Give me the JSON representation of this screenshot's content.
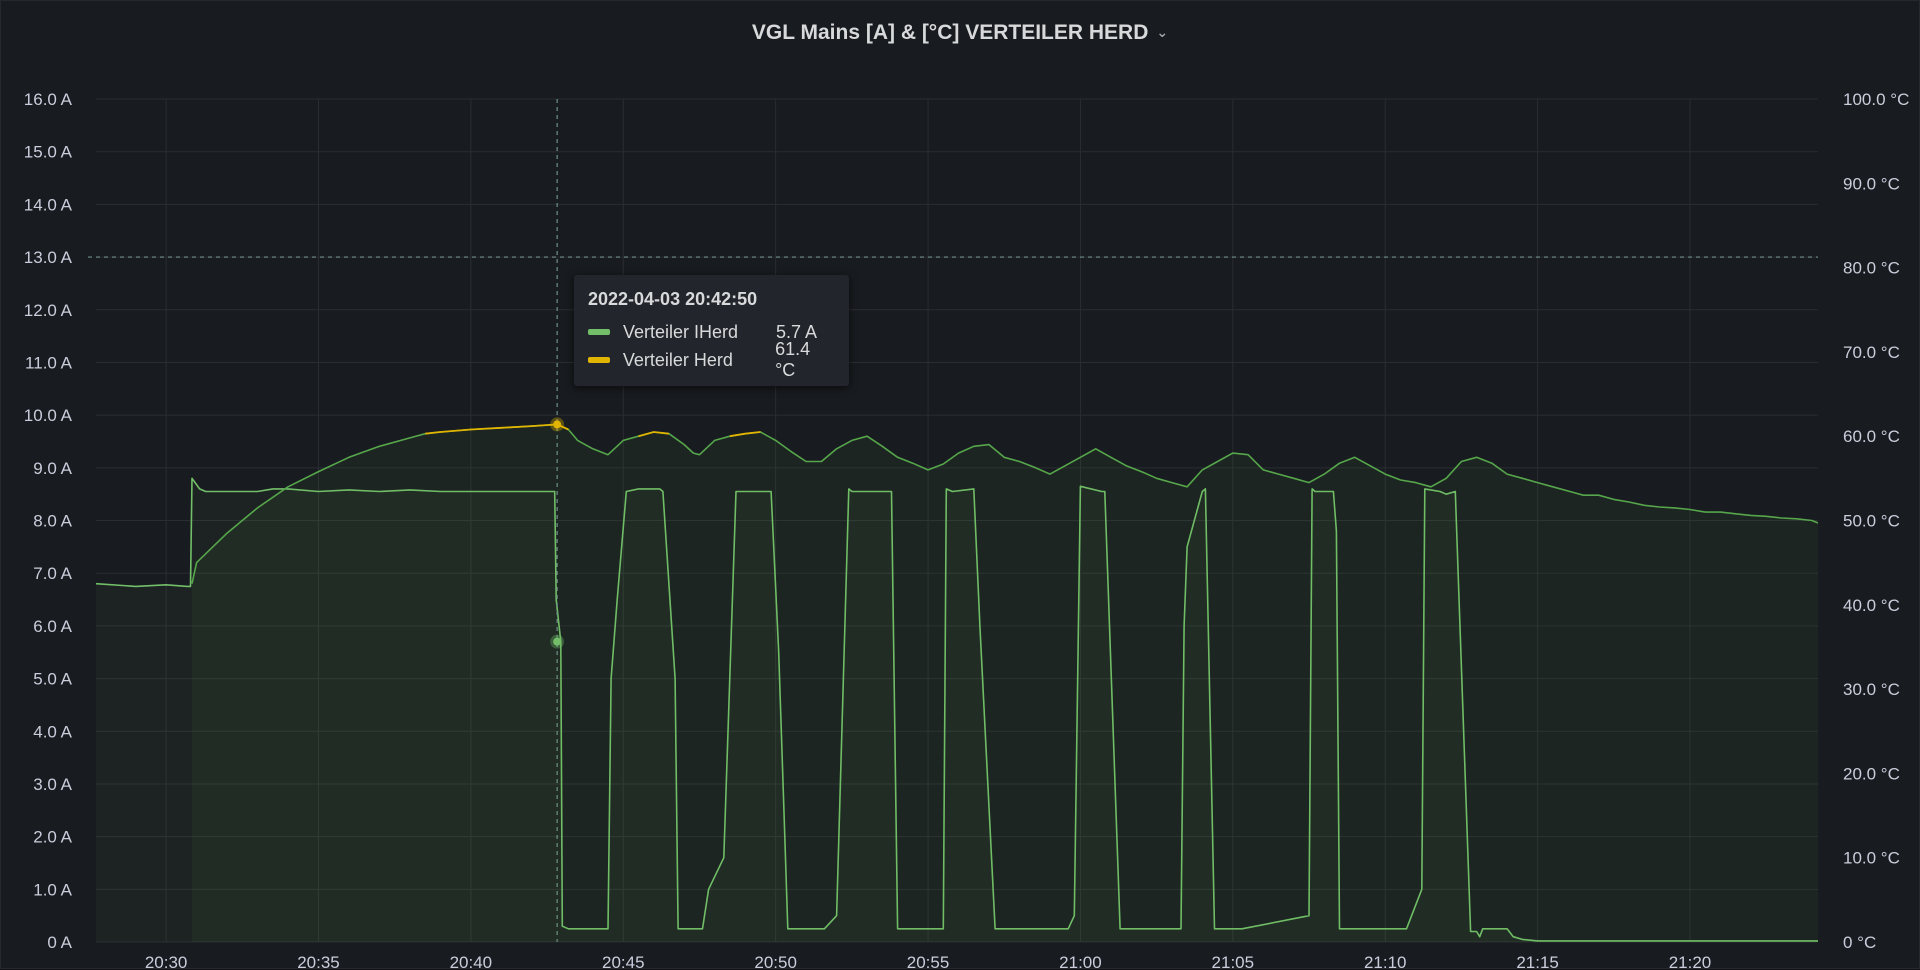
{
  "panel": {
    "title": "VGL Mains [A] & [°C] VERTEILER HERD"
  },
  "tooltip": {
    "time": "2022-04-03 20:42:50",
    "rows": [
      {
        "name": "Verteiler IHerd",
        "value": "5.7 A",
        "color": "#73bf69"
      },
      {
        "name": "Verteiler Herd",
        "value": "61.4 °C",
        "color": "#fade2a"
      }
    ]
  },
  "chart_data": {
    "type": "line",
    "title": "VGL Mains [A] & [°C] VERTEILER HERD",
    "x_ticks": [
      "20:30",
      "20:35",
      "20:40",
      "20:45",
      "20:50",
      "20:55",
      "21:00",
      "21:05",
      "21:10",
      "21:15",
      "21:20"
    ],
    "x_tick_minutes": [
      30,
      35,
      40,
      45,
      50,
      55,
      60,
      65,
      70,
      75,
      80
    ],
    "xlim_minutes": [
      27.7,
      84.2
    ],
    "y_left": {
      "ticks": [
        "0 A",
        "1.0 A",
        "2.0 A",
        "3.0 A",
        "4.0 A",
        "5.0 A",
        "6.0 A",
        "7.0 A",
        "8.0 A",
        "9.0 A",
        "10.0 A",
        "11.0 A",
        "12.0 A",
        "13.0 A",
        "14.0 A",
        "15.0 A",
        "16.0 A"
      ],
      "ylim": [
        0,
        16
      ],
      "unit": "A"
    },
    "y_right": {
      "ticks": [
        "0 °C",
        "10.0 °C",
        "20.0 °C",
        "30.0 °C",
        "40.0 °C",
        "50.0 °C",
        "60.0 °C",
        "70.0 °C",
        "80.0 °C",
        "90.0 °C",
        "100.0 °C"
      ],
      "ylim": [
        0,
        100
      ],
      "unit": "°C"
    },
    "threshold_A": 13,
    "cursor_minute": 42.83,
    "grid": true,
    "series": [
      {
        "name": "Verteiler IHerd",
        "axis": "left",
        "color": "#73bf69",
        "x": [
          27.7,
          29.0,
          30.0,
          30.7,
          30.8,
          30.85,
          31.1,
          31.3,
          32.0,
          33.0,
          33.5,
          34.0,
          35.0,
          36.0,
          37.0,
          38.0,
          39.0,
          40.0,
          41.0,
          42.0,
          42.7,
          42.75,
          42.8,
          42.95,
          43.0,
          43.2,
          43.3,
          44.0,
          44.5,
          44.6,
          44.8,
          45.1,
          45.5,
          46.2,
          46.3,
          46.7,
          46.8,
          47.1,
          47.6,
          47.8,
          48.3,
          48.7,
          48.8,
          49.7,
          49.85,
          50.1,
          50.3,
          50.4,
          51.0,
          51.6,
          52.0,
          52.4,
          52.5,
          53.0,
          53.7,
          53.8,
          54.0,
          54.2,
          55.5,
          55.6,
          55.8,
          56.5,
          56.7,
          57.2,
          57.4,
          58.0,
          59.6,
          59.8,
          60.0,
          60.7,
          60.8,
          61.3,
          61.4,
          62.0,
          63.3,
          63.4,
          63.5,
          64.0,
          64.1,
          64.4,
          64.6,
          65.0,
          65.1,
          65.3,
          67.5,
          67.6,
          67.7,
          68.3,
          68.4,
          68.5,
          69.2,
          70.2,
          70.7,
          71.2,
          71.3,
          71.8,
          72.0,
          72.3,
          72.8,
          73.0,
          73.1,
          73.2,
          73.4,
          74.0,
          74.2,
          74.5,
          75.0,
          84.2
        ],
        "values": [
          6.8,
          6.75,
          6.78,
          6.75,
          6.75,
          8.8,
          8.6,
          8.55,
          8.55,
          8.55,
          8.6,
          8.6,
          8.55,
          8.58,
          8.55,
          8.58,
          8.55,
          8.55,
          8.55,
          8.55,
          8.55,
          8.55,
          6.5,
          5.7,
          0.3,
          0.25,
          0.25,
          0.25,
          0.25,
          5.0,
          6.5,
          8.55,
          8.6,
          8.6,
          8.55,
          5.0,
          0.25,
          0.25,
          0.25,
          1.0,
          1.6,
          8.55,
          8.55,
          8.55,
          8.55,
          5.5,
          2.0,
          0.25,
          0.25,
          0.25,
          0.5,
          8.6,
          8.55,
          8.55,
          8.55,
          8.55,
          0.25,
          0.25,
          0.25,
          8.6,
          8.55,
          8.6,
          6.0,
          0.25,
          0.25,
          0.25,
          0.25,
          0.5,
          8.65,
          8.55,
          8.55,
          0.25,
          0.25,
          0.25,
          0.25,
          6.0,
          7.5,
          8.55,
          8.6,
          0.25,
          0.25,
          0.25,
          0.25,
          0.25,
          0.5,
          8.6,
          8.55,
          8.55,
          7.8,
          0.25,
          0.25,
          0.25,
          0.25,
          1.0,
          8.6,
          8.55,
          8.5,
          8.55,
          0.2,
          0.2,
          0.1,
          0.25,
          0.25,
          0.25,
          0.1,
          0.05,
          0.02,
          0.02
        ]
      },
      {
        "name": "Verteiler Herd",
        "axis": "right",
        "color": "#fade2a",
        "x": [
          30.85,
          31.0,
          32.0,
          33.0,
          34.0,
          35.0,
          36.0,
          37.0,
          38.0,
          38.5,
          39.0,
          40.0,
          41.0,
          42.0,
          42.83,
          43.2,
          43.5,
          44.0,
          44.5,
          45.0,
          45.5,
          46.0,
          46.5,
          47.0,
          47.3,
          47.5,
          48.0,
          48.5,
          49.0,
          49.5,
          50.0,
          50.5,
          51.0,
          51.5,
          52.0,
          52.5,
          53.0,
          53.5,
          54.0,
          54.5,
          55.0,
          55.5,
          56.0,
          56.5,
          57.0,
          57.5,
          58.0,
          58.5,
          59.0,
          59.5,
          60.0,
          60.5,
          61.0,
          61.5,
          62.0,
          62.5,
          63.0,
          63.5,
          64.0,
          64.5,
          65.0,
          65.5,
          66.0,
          66.5,
          67.0,
          67.5,
          68.0,
          68.5,
          69.0,
          69.5,
          70.0,
          70.5,
          71.0,
          71.5,
          72.0,
          72.5,
          73.0,
          73.5,
          74.0,
          74.5,
          75.0,
          75.5,
          76.0,
          76.5,
          77.0,
          77.5,
          78.0,
          78.5,
          79.0,
          79.5,
          80.0,
          80.5,
          81.0,
          81.5,
          82.0,
          82.5,
          83.0,
          83.5,
          84.0,
          84.2
        ],
        "values": [
          42.5,
          45.0,
          48.5,
          51.5,
          54.0,
          55.8,
          57.5,
          58.8,
          59.8,
          60.3,
          60.5,
          60.8,
          61.0,
          61.2,
          61.4,
          60.8,
          59.5,
          58.5,
          57.8,
          59.5,
          60.0,
          60.5,
          60.3,
          59.0,
          58.0,
          57.8,
          59.5,
          60.0,
          60.3,
          60.5,
          59.5,
          58.2,
          57.0,
          57.0,
          58.5,
          59.5,
          60.0,
          58.8,
          57.5,
          56.8,
          56.0,
          56.7,
          58.0,
          58.8,
          59.0,
          57.5,
          57.0,
          56.3,
          55.5,
          56.5,
          57.5,
          58.5,
          57.5,
          56.5,
          55.8,
          55.0,
          54.5,
          54.0,
          56.0,
          57.0,
          58.0,
          57.8,
          56.0,
          55.5,
          55.0,
          54.5,
          55.5,
          56.8,
          57.5,
          56.5,
          55.5,
          54.8,
          54.5,
          54.0,
          55.0,
          57.0,
          57.5,
          56.8,
          55.5,
          55.0,
          54.5,
          54.0,
          53.5,
          53.0,
          53.0,
          52.5,
          52.2,
          51.8,
          51.6,
          51.5,
          51.3,
          51.0,
          51.0,
          50.8,
          50.6,
          50.5,
          50.3,
          50.2,
          50.0,
          49.7
        ]
      }
    ]
  }
}
